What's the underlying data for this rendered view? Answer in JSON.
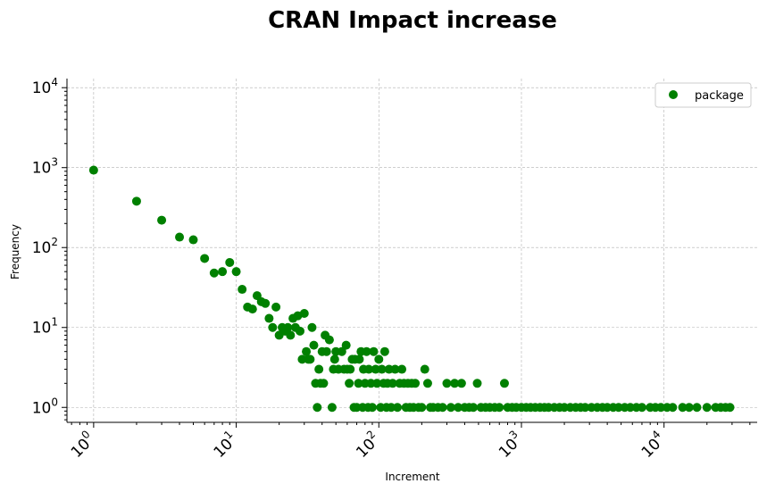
{
  "chart_data": {
    "type": "scatter",
    "title": "CRAN Impact increase",
    "xlabel": "Increment",
    "ylabel": "Frequency",
    "xscale": "log",
    "yscale": "log",
    "xlim": [
      0.65,
      45000
    ],
    "ylim": [
      0.65,
      13000
    ],
    "grid": true,
    "legend_position": "top-right",
    "color": "#008000",
    "x_ticks": [
      {
        "base": "10",
        "exp": "0",
        "value": 1
      },
      {
        "base": "10",
        "exp": "1",
        "value": 10
      },
      {
        "base": "10",
        "exp": "2",
        "value": 100
      },
      {
        "base": "10",
        "exp": "3",
        "value": 1000
      },
      {
        "base": "10",
        "exp": "4",
        "value": 10000
      }
    ],
    "y_ticks": [
      {
        "base": "10",
        "exp": "0",
        "value": 1
      },
      {
        "base": "10",
        "exp": "1",
        "value": 10
      },
      {
        "base": "10",
        "exp": "2",
        "value": 100
      },
      {
        "base": "10",
        "exp": "3",
        "value": 1000
      },
      {
        "base": "10",
        "exp": "4",
        "value": 10000
      }
    ],
    "series": [
      {
        "name": "package",
        "points": [
          [
            1,
            930
          ],
          [
            2,
            380
          ],
          [
            3,
            220
          ],
          [
            4,
            135
          ],
          [
            5,
            125
          ],
          [
            6,
            73
          ],
          [
            7,
            48
          ],
          [
            8,
            50
          ],
          [
            9,
            65
          ],
          [
            10,
            50
          ],
          [
            11,
            30
          ],
          [
            12,
            18
          ],
          [
            13,
            17
          ],
          [
            14,
            25
          ],
          [
            15,
            21
          ],
          [
            16,
            20
          ],
          [
            17,
            13
          ],
          [
            18,
            10
          ],
          [
            19,
            18
          ],
          [
            20,
            8
          ],
          [
            21,
            10
          ],
          [
            22,
            9
          ],
          [
            23,
            10
          ],
          [
            24,
            8
          ],
          [
            25,
            13
          ],
          [
            26,
            10
          ],
          [
            27,
            14
          ],
          [
            28,
            9
          ],
          [
            29,
            4
          ],
          [
            30,
            15
          ],
          [
            31,
            5
          ],
          [
            32,
            4
          ],
          [
            33,
            4
          ],
          [
            34,
            10
          ],
          [
            35,
            6
          ],
          [
            36,
            2
          ],
          [
            37,
            1
          ],
          [
            38,
            3
          ],
          [
            39,
            2
          ],
          [
            40,
            5
          ],
          [
            41,
            2
          ],
          [
            42,
            8
          ],
          [
            43,
            5
          ],
          [
            45,
            7
          ],
          [
            47,
            1
          ],
          [
            48,
            3
          ],
          [
            49,
            4
          ],
          [
            50,
            5
          ],
          [
            52,
            3
          ],
          [
            55,
            5
          ],
          [
            57,
            3
          ],
          [
            59,
            6
          ],
          [
            60,
            3
          ],
          [
            62,
            2
          ],
          [
            63,
            3
          ],
          [
            65,
            4
          ],
          [
            67,
            1
          ],
          [
            68,
            4
          ],
          [
            70,
            1
          ],
          [
            72,
            2
          ],
          [
            73,
            4
          ],
          [
            75,
            5
          ],
          [
            77,
            1
          ],
          [
            78,
            3
          ],
          [
            80,
            2
          ],
          [
            82,
            5
          ],
          [
            84,
            1
          ],
          [
            85,
            3
          ],
          [
            88,
            2
          ],
          [
            90,
            1
          ],
          [
            92,
            5
          ],
          [
            95,
            3
          ],
          [
            97,
            2
          ],
          [
            100,
            4
          ],
          [
            103,
            1
          ],
          [
            105,
            3
          ],
          [
            108,
            2
          ],
          [
            110,
            5
          ],
          [
            113,
            1
          ],
          [
            115,
            2
          ],
          [
            118,
            3
          ],
          [
            122,
            1
          ],
          [
            125,
            2
          ],
          [
            130,
            3
          ],
          [
            135,
            1
          ],
          [
            140,
            2
          ],
          [
            145,
            3
          ],
          [
            150,
            2
          ],
          [
            155,
            1
          ],
          [
            160,
            2
          ],
          [
            165,
            1
          ],
          [
            170,
            2
          ],
          [
            175,
            1
          ],
          [
            180,
            2
          ],
          [
            190,
            1
          ],
          [
            200,
            1
          ],
          [
            210,
            3
          ],
          [
            220,
            2
          ],
          [
            230,
            1
          ],
          [
            240,
            1
          ],
          [
            260,
            1
          ],
          [
            280,
            1
          ],
          [
            300,
            2
          ],
          [
            320,
            1
          ],
          [
            340,
            2
          ],
          [
            360,
            1
          ],
          [
            380,
            2
          ],
          [
            400,
            1
          ],
          [
            430,
            1
          ],
          [
            460,
            1
          ],
          [
            490,
            2
          ],
          [
            520,
            1
          ],
          [
            560,
            1
          ],
          [
            600,
            1
          ],
          [
            650,
            1
          ],
          [
            700,
            1
          ],
          [
            760,
            2
          ],
          [
            800,
            1
          ],
          [
            860,
            1
          ],
          [
            920,
            1
          ],
          [
            1000,
            1
          ],
          [
            1080,
            1
          ],
          [
            1160,
            1
          ],
          [
            1250,
            1
          ],
          [
            1350,
            1
          ],
          [
            1450,
            1
          ],
          [
            1550,
            1
          ],
          [
            1700,
            1
          ],
          [
            1850,
            1
          ],
          [
            2000,
            1
          ],
          [
            2200,
            1
          ],
          [
            2400,
            1
          ],
          [
            2600,
            1
          ],
          [
            2800,
            1
          ],
          [
            3100,
            1
          ],
          [
            3400,
            1
          ],
          [
            3700,
            1
          ],
          [
            4000,
            1
          ],
          [
            4400,
            1
          ],
          [
            4800,
            1
          ],
          [
            5300,
            1
          ],
          [
            5800,
            1
          ],
          [
            6400,
            1
          ],
          [
            7000,
            1
          ],
          [
            8000,
            1
          ],
          [
            8700,
            1
          ],
          [
            9500,
            1
          ],
          [
            10500,
            1
          ],
          [
            11500,
            1
          ],
          [
            13500,
            1
          ],
          [
            15000,
            1
          ],
          [
            17000,
            1
          ],
          [
            20000,
            1
          ],
          [
            23000,
            1
          ],
          [
            25000,
            1
          ],
          [
            27000,
            1
          ],
          [
            29000,
            1
          ]
        ]
      }
    ]
  }
}
